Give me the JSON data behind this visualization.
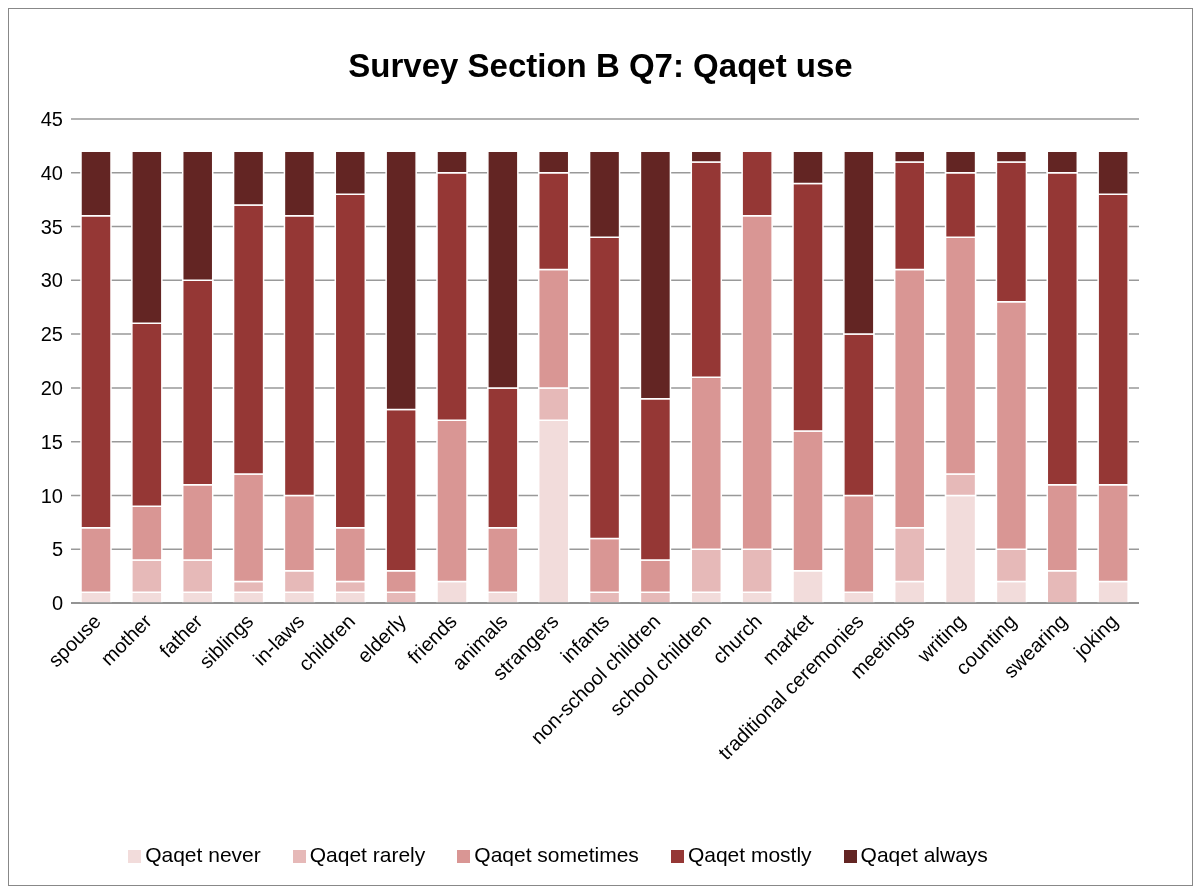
{
  "chart_data": {
    "type": "bar",
    "title": "Survey Section B Q7: Qaqet use",
    "stacked": true,
    "categories": [
      "spouse",
      "mother",
      "father",
      "siblings",
      "in-laws",
      "children",
      "elderly",
      "friends",
      "animals",
      "strangers",
      "infants",
      "non-school children",
      "school children",
      "church",
      "market",
      "traditional ceremonies",
      "meetings",
      "writing",
      "counting",
      "swearing",
      "joking"
    ],
    "series": [
      {
        "name": "Qaqet never",
        "color": "#f2dcdb",
        "values": [
          1,
          1,
          1,
          1,
          1,
          1,
          0,
          2,
          1,
          17,
          0,
          0,
          1,
          1,
          3,
          1,
          2,
          10,
          2,
          0,
          2
        ]
      },
      {
        "name": "Qaqet rarely",
        "color": "#e6b9b8",
        "values": [
          0,
          3,
          3,
          1,
          2,
          1,
          1,
          0,
          0,
          3,
          1,
          1,
          4,
          4,
          0,
          0,
          5,
          2,
          3,
          3,
          0
        ]
      },
      {
        "name": "Qaqet sometimes",
        "color": "#d99694",
        "values": [
          6,
          5,
          7,
          10,
          7,
          5,
          2,
          15,
          6,
          11,
          5,
          3,
          16,
          31,
          13,
          9,
          24,
          22,
          23,
          8,
          9
        ]
      },
      {
        "name": "Qaqet mostly",
        "color": "#953735",
        "values": [
          29,
          17,
          19,
          25,
          26,
          31,
          15,
          23,
          13,
          9,
          28,
          15,
          20,
          6,
          23,
          15,
          10,
          6,
          13,
          29,
          27
        ]
      },
      {
        "name": "Qaqet always",
        "color": "#632523",
        "values": [
          6,
          16,
          12,
          5,
          6,
          4,
          24,
          2,
          22,
          2,
          8,
          23,
          1,
          0,
          3,
          17,
          1,
          2,
          1,
          2,
          4
        ]
      }
    ],
    "ylim": [
      0,
      45
    ],
    "yticks": [
      0,
      5,
      10,
      15,
      20,
      25,
      30,
      35,
      40,
      45
    ],
    "grid": "y",
    "legend": "bottom"
  }
}
